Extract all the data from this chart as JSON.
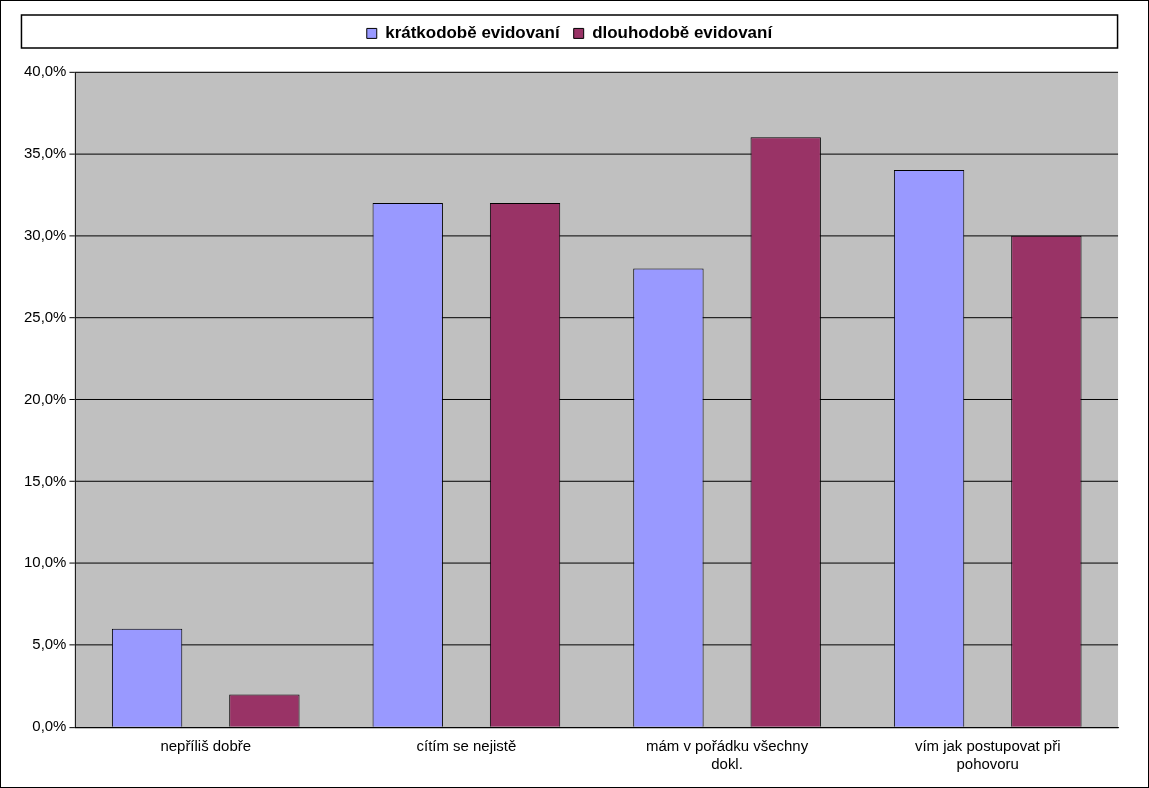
{
  "chart_data": {
    "type": "bar",
    "categories": [
      "nepříliš dobře",
      "cítím se nejistě",
      "mám v pořádku všechny dokl.",
      "vím jak postupovat při pohovoru"
    ],
    "series": [
      {
        "name": "krátkodobě evidovaní",
        "color": "#9999ff",
        "values": [
          6,
          32,
          28,
          34
        ]
      },
      {
        "name": "dlouhodobě evidovaní",
        "color": "#993366",
        "values": [
          2,
          32,
          36,
          30
        ]
      }
    ],
    "ylim": [
      0,
      40
    ],
    "yticks": [
      {
        "value": 0,
        "label": "0,0%"
      },
      {
        "value": 5,
        "label": "5,0%"
      },
      {
        "value": 10,
        "label": "10,0%"
      },
      {
        "value": 15,
        "label": "15,0%"
      },
      {
        "value": 20,
        "label": "20,0%"
      },
      {
        "value": 25,
        "label": "25,0%"
      },
      {
        "value": 30,
        "label": "30,0%"
      },
      {
        "value": 35,
        "label": "35,0%"
      },
      {
        "value": 40,
        "label": "40,0%"
      }
    ],
    "grid": "y",
    "legend": "top"
  }
}
